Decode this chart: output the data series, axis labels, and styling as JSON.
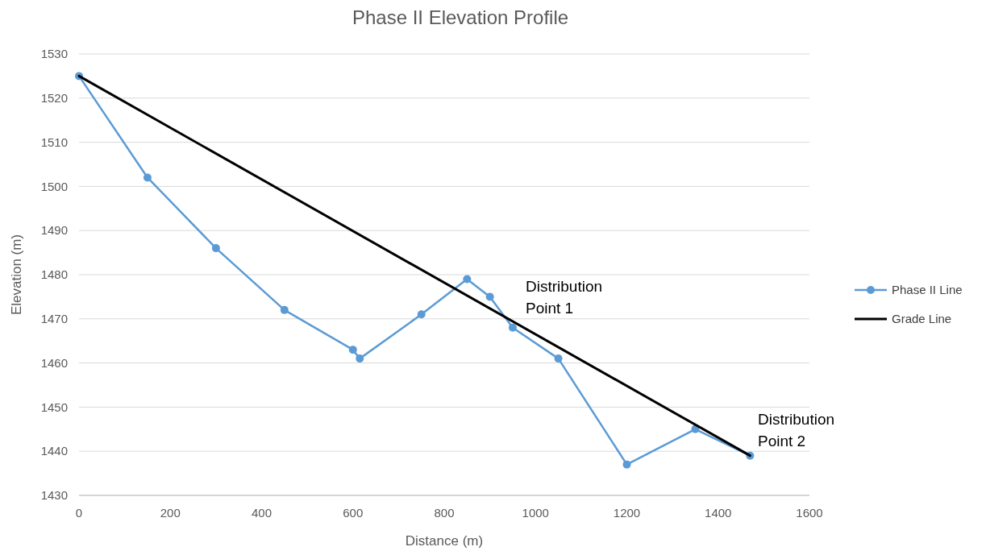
{
  "chart_data": {
    "type": "line",
    "title": "Phase II Elevation Profile",
    "xlabel": "Distance (m)",
    "ylabel": "Elevation (m)",
    "xlim": [
      0,
      1600
    ],
    "xticks": [
      0,
      200,
      400,
      600,
      800,
      1000,
      1200,
      1400,
      1600
    ],
    "ylim": [
      1430,
      1530
    ],
    "yticks": [
      1430,
      1440,
      1450,
      1460,
      1470,
      1480,
      1490,
      1500,
      1510,
      1520,
      1530
    ],
    "grid": "y",
    "legend": "right",
    "marker": "circle",
    "series": [
      {
        "name": "Phase II Line",
        "color": "#5b9bd5",
        "x": [
          0,
          150,
          300,
          450,
          600,
          615,
          750,
          850,
          900,
          950,
          1050,
          1200,
          1350,
          1470
        ],
        "values": [
          1525,
          1502,
          1486,
          1472,
          1463,
          1461,
          1471,
          1479,
          1475,
          1468,
          1461,
          1437,
          1445,
          1439
        ]
      },
      {
        "name": "Grade Line",
        "color": "#000000",
        "marker": "none",
        "x": [
          0,
          1470
        ],
        "values": [
          1525,
          1439
        ]
      }
    ],
    "annotations": [
      "Distribution Point 1",
      "Distribution Point 2"
    ]
  }
}
